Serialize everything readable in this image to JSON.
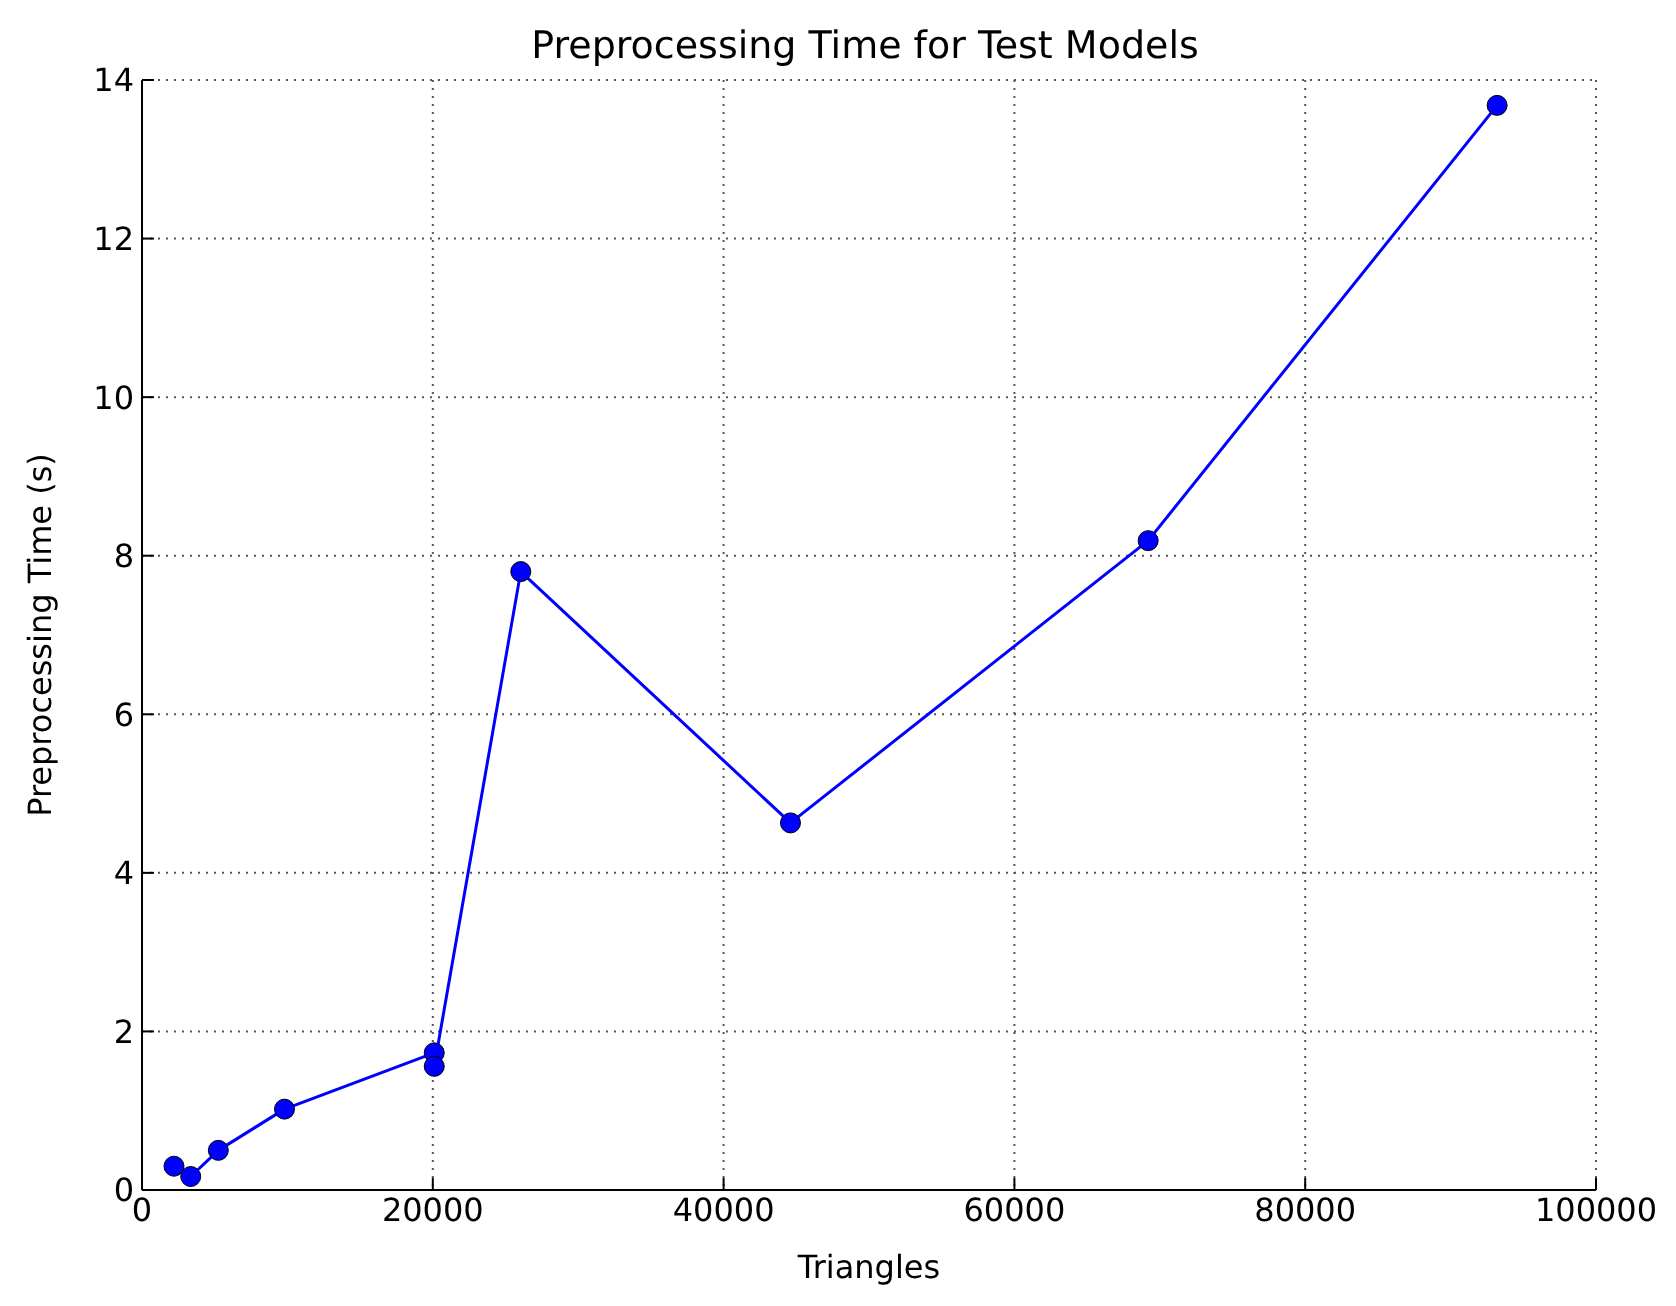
{
  "chart_data": {
    "type": "line",
    "title": "Preprocessing Time for Test Models",
    "xlabel": "Triangles",
    "ylabel": "Preprocessing Time (s)",
    "xlim": [
      0,
      100000
    ],
    "xticks": [
      0,
      20000,
      40000,
      60000,
      80000,
      100000
    ],
    "ylim": [
      0,
      14
    ],
    "yticks": [
      0,
      2,
      4,
      6,
      8,
      10,
      12,
      14
    ],
    "grid": true,
    "marker": "circle",
    "line_style": "solid",
    "series": [
      {
        "color": "#0000ff",
        "x": [
          2200,
          3350,
          5250,
          9800,
          20100,
          20100,
          26050,
          44600,
          69200,
          93200
        ],
        "values": [
          0.3,
          0.17,
          0.5,
          1.02,
          1.73,
          1.56,
          7.8,
          4.63,
          8.19,
          13.68
        ]
      }
    ]
  }
}
